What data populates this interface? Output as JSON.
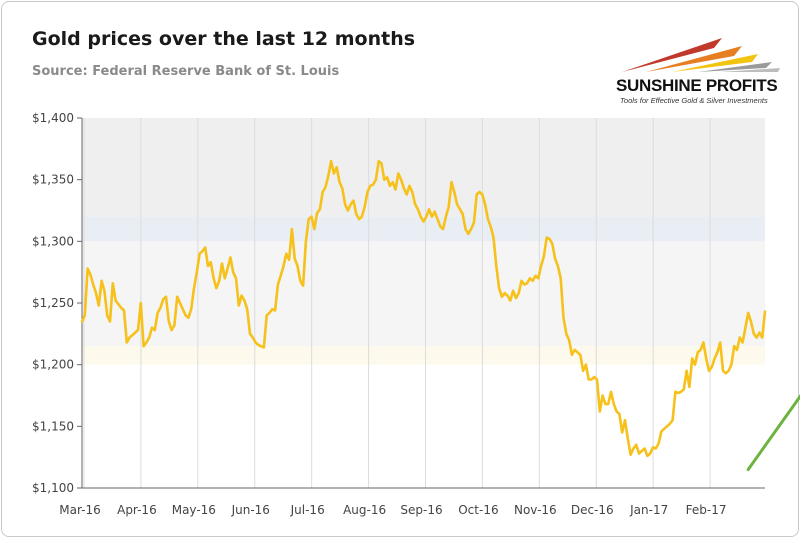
{
  "header": {
    "title": "Gold prices over the last 12 months",
    "source": "Source: Federal Reserve Bank of St. Louis"
  },
  "logo": {
    "name": "SUNSHINE PROFITS",
    "tagline": "Tools for Effective Gold & Silver Investments",
    "colors": [
      "#c0392b",
      "#e67e22",
      "#f1c40f",
      "#8e8e8e"
    ]
  },
  "colors": {
    "line": "#f5c11a",
    "arrow": "#6db33f",
    "band_top": "#efefef",
    "band_blue": "#e9eef5",
    "band_mid": "#f5f5f5",
    "band_cream": "#fdf9ec"
  },
  "chart_data": {
    "type": "line",
    "title": "Gold prices over the last 12 months",
    "ylim": [
      1100,
      1400
    ],
    "yticks": [
      1100,
      1150,
      1200,
      1250,
      1300,
      1350,
      1400
    ],
    "ytick_labels": [
      "$1,100",
      "$1,150",
      "$1,200",
      "$1,250",
      "$1,300",
      "$1,350",
      "$1,400"
    ],
    "xticks": [
      "Mar-16",
      "Apr-16",
      "May-16",
      "Jun-16",
      "Jul-16",
      "Aug-16",
      "Sep-16",
      "Oct-16",
      "Nov-16",
      "Dec-16",
      "Jan-17",
      "Feb-17"
    ],
    "bands": [
      {
        "from": 1320,
        "to": 1400,
        "color": "#efefef"
      },
      {
        "from": 1300,
        "to": 1320,
        "color": "#e9eef5"
      },
      {
        "from": 1215,
        "to": 1300,
        "color": "#f5f5f5"
      },
      {
        "from": 1200,
        "to": 1215,
        "color": "#fdf9ec"
      }
    ],
    "grid": "vertical",
    "series": [
      {
        "values": [
          1235,
          1240,
          1278,
          1273,
          1265,
          1258,
          1248,
          1268,
          1260,
          1240,
          1235,
          1266,
          1252,
          1249,
          1246,
          1244,
          1218,
          1222,
          1224,
          1226,
          1228,
          1250,
          1215,
          1218,
          1222,
          1230,
          1228,
          1242,
          1246,
          1253,
          1255,
          1235,
          1228,
          1232,
          1255,
          1250,
          1245,
          1240,
          1238,
          1245,
          1262,
          1275,
          1290,
          1292,
          1295,
          1280,
          1283,
          1270,
          1262,
          1268,
          1282,
          1270,
          1278,
          1287,
          1275,
          1270,
          1248,
          1256,
          1252,
          1245,
          1225,
          1222,
          1218,
          1216,
          1215,
          1214,
          1240,
          1242,
          1245,
          1244,
          1265,
          1272,
          1280,
          1290,
          1285,
          1310,
          1286,
          1280,
          1268,
          1264,
          1300,
          1318,
          1320,
          1310,
          1323,
          1326,
          1340,
          1344,
          1353,
          1365,
          1355,
          1360,
          1348,
          1343,
          1330,
          1325,
          1330,
          1333,
          1322,
          1318,
          1320,
          1328,
          1340,
          1345,
          1346,
          1350,
          1365,
          1363,
          1350,
          1352,
          1345,
          1348,
          1342,
          1355,
          1350,
          1343,
          1338,
          1345,
          1340,
          1330,
          1326,
          1320,
          1316,
          1320,
          1326,
          1320,
          1324,
          1318,
          1312,
          1310,
          1320,
          1328,
          1348,
          1340,
          1330,
          1326,
          1322,
          1310,
          1306,
          1310,
          1315,
          1338,
          1340,
          1338,
          1330,
          1318,
          1312,
          1303,
          1280,
          1262,
          1255,
          1258,
          1256,
          1252,
          1260,
          1254,
          1258,
          1268,
          1265,
          1266,
          1270,
          1268,
          1272,
          1270,
          1280,
          1288,
          1303,
          1302,
          1298,
          1286,
          1280,
          1270,
          1238,
          1225,
          1220,
          1208,
          1212,
          1210,
          1208,
          1195,
          1200,
          1188,
          1188,
          1190,
          1188,
          1162,
          1175,
          1168,
          1168,
          1178,
          1168,
          1162,
          1160,
          1145,
          1155,
          1140,
          1127,
          1132,
          1135,
          1128,
          1130,
          1132,
          1126,
          1128,
          1133,
          1132,
          1136,
          1146,
          1148,
          1150,
          1152,
          1155,
          1178,
          1177,
          1178,
          1180,
          1195,
          1182,
          1205,
          1200,
          1210,
          1212,
          1218,
          1205,
          1195,
          1198,
          1205,
          1210,
          1218,
          1195,
          1193,
          1195,
          1200,
          1215,
          1212,
          1222,
          1218,
          1230,
          1242,
          1235,
          1225,
          1222,
          1226,
          1222,
          1243
        ]
      }
    ],
    "annotation": {
      "type": "arrow",
      "from_index": 238,
      "from_value": 1115,
      "to_index": 264,
      "to_value": 1198,
      "color": "#6db33f"
    }
  }
}
